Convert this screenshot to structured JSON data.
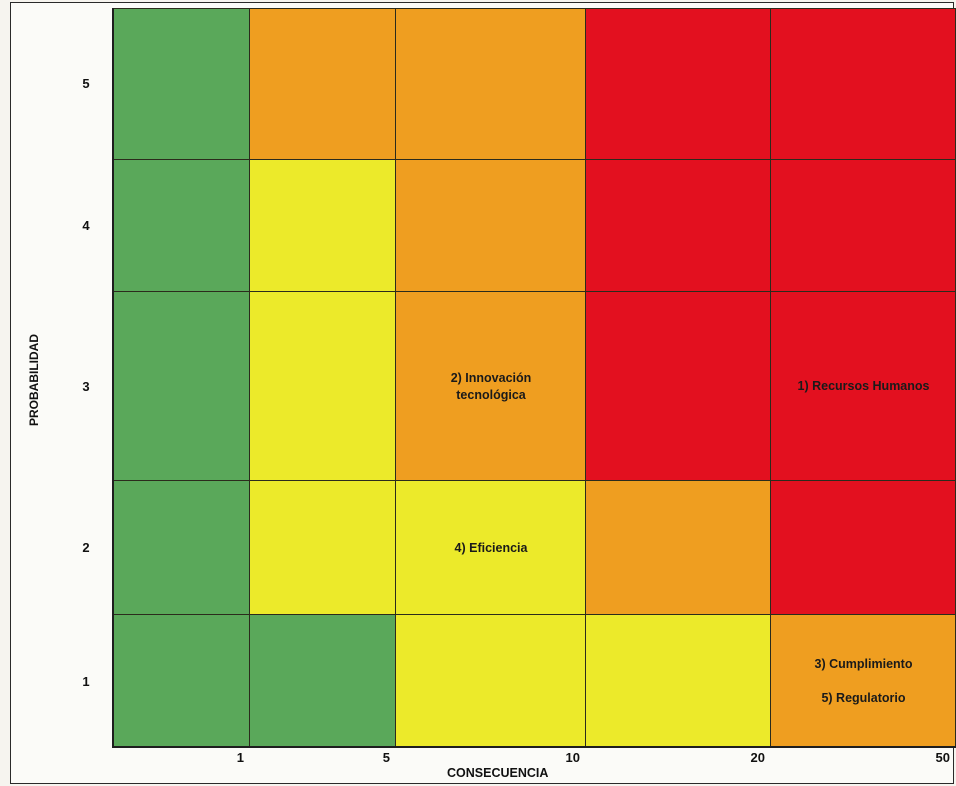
{
  "chart_data": {
    "type": "heatmap",
    "xlabel": "CONSECUENCIA",
    "ylabel": "PROBABILIDAD",
    "x_ticks": [
      "1",
      "5",
      "10",
      "20",
      "50"
    ],
    "y_ticks": [
      "5",
      "4",
      "3",
      "2",
      "1"
    ],
    "colors": {
      "green": "#5aa85a",
      "yellow": "#ecea2a",
      "orange": "#ef9e20",
      "red": "#e3101f"
    },
    "grid": [
      [
        "green",
        "orange",
        "orange",
        "red",
        "red"
      ],
      [
        "green",
        "yellow",
        "orange",
        "red",
        "red"
      ],
      [
        "green",
        "yellow",
        "orange",
        "red",
        "red"
      ],
      [
        "green",
        "yellow",
        "yellow",
        "orange",
        "red"
      ],
      [
        "green",
        "green",
        "yellow",
        "yellow",
        "orange"
      ]
    ],
    "annotations": [
      {
        "row": 2,
        "col": 2,
        "text": "2) Innovación\ntecnológica"
      },
      {
        "row": 2,
        "col": 4,
        "text": "1) Recursos Humanos"
      },
      {
        "row": 3,
        "col": 2,
        "text": "4) Eficiencia"
      },
      {
        "row": 4,
        "col": 4,
        "text": "3) Cumplimiento\n\n5) Regulatorio"
      }
    ]
  }
}
